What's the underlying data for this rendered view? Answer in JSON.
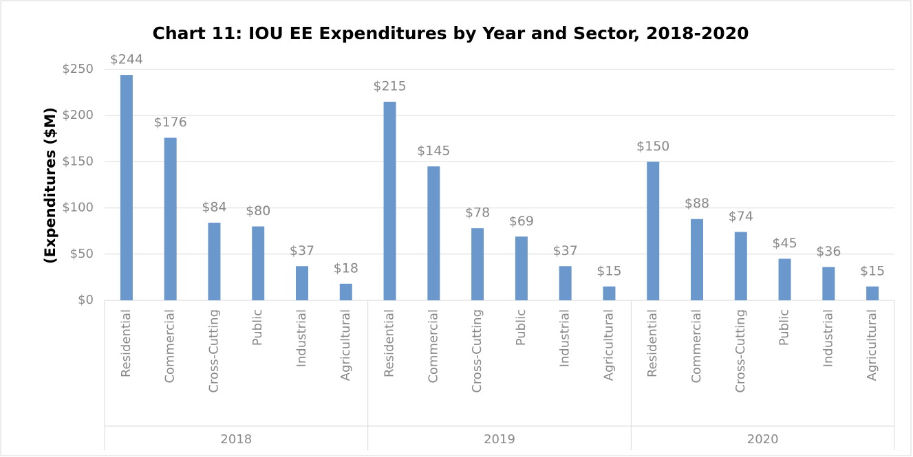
{
  "chart_data": {
    "type": "bar",
    "title": "Chart 11: IOU EE Expenditures by Year and Sector, 2018-2020",
    "y_label": "(Expenditures ($M)",
    "color": "#6a98cc",
    "grid": true,
    "ylim": [
      0,
      250
    ],
    "yticks": [
      {
        "value": 0,
        "label": "$0"
      },
      {
        "value": 50,
        "label": "$50"
      },
      {
        "value": 100,
        "label": "$100"
      },
      {
        "value": 150,
        "label": "$150"
      },
      {
        "value": 200,
        "label": "$200"
      },
      {
        "value": 250,
        "label": "$250"
      }
    ],
    "groups": [
      {
        "name": "2018",
        "categories": [
          "Residential",
          "Commercial",
          "Cross-Cutting",
          "Public",
          "Industrial",
          "Agricultural"
        ],
        "values": [
          244,
          176,
          84,
          80,
          37,
          18
        ],
        "value_labels": [
          "$244",
          "$176",
          "$84",
          "$80",
          "$37",
          "$18"
        ]
      },
      {
        "name": "2019",
        "categories": [
          "Residential",
          "Commercial",
          "Cross-Cutting",
          "Public",
          "Industrial",
          "Agricultural"
        ],
        "values": [
          215,
          145,
          78,
          69,
          37,
          15
        ],
        "value_labels": [
          "$215",
          "$145",
          "$78",
          "$69",
          "$37",
          "$15"
        ]
      },
      {
        "name": "2020",
        "categories": [
          "Residential",
          "Commercial",
          "Cross-Cutting",
          "Public",
          "Industrial",
          "Agricultural"
        ],
        "values": [
          150,
          88,
          74,
          45,
          36,
          15
        ],
        "value_labels": [
          "$150",
          "$88",
          "$74",
          "$45",
          "$36",
          "$15"
        ]
      }
    ]
  }
}
